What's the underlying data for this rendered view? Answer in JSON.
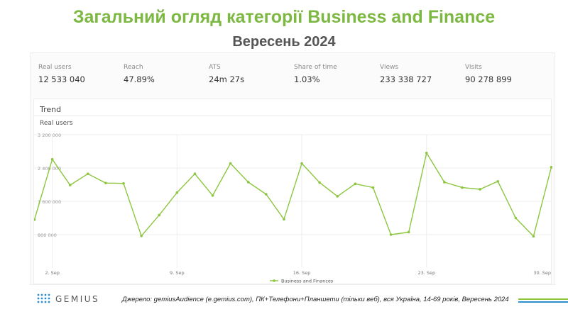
{
  "header": {
    "title": "Загальний огляд категорії Business and Finance",
    "subtitle": "Вересень 2024"
  },
  "metrics": [
    {
      "label": "Real users",
      "value": "12 533 040"
    },
    {
      "label": "Reach",
      "value": "47.89%"
    },
    {
      "label": "ATS",
      "value": "24m 27s"
    },
    {
      "label": "Share of time",
      "value": "1.03%"
    },
    {
      "label": "Views",
      "value": "233 338 727"
    },
    {
      "label": "Visits",
      "value": "90 278 899"
    }
  ],
  "trend": {
    "title": "Trend",
    "series_title": "Real users"
  },
  "chart_data": {
    "type": "line",
    "ylabel": "",
    "xlabel": "",
    "ylim": [
      0,
      3200000
    ],
    "yticks": [
      800000,
      1600000,
      2400000,
      3200000
    ],
    "ytick_labels": [
      "800 000",
      "1 600 000",
      "2 400 000",
      "3 200 000"
    ],
    "x": [
      "1 Sep",
      "2 Sep",
      "3 Sep",
      "4 Sep",
      "5 Sep",
      "6 Sep",
      "7 Sep",
      "8 Sep",
      "9 Sep",
      "10 Sep",
      "11 Sep",
      "12 Sep",
      "13 Sep",
      "14 Sep",
      "15 Sep",
      "16 Sep",
      "17 Sep",
      "18 Sep",
      "19 Sep",
      "20 Sep",
      "21 Sep",
      "22 Sep",
      "23 Sep",
      "24 Sep",
      "25 Sep",
      "26 Sep",
      "27 Sep",
      "28 Sep",
      "29 Sep",
      "30 Sep"
    ],
    "xtick_labels": [
      {
        "index": 1,
        "label": "2. Sep"
      },
      {
        "index": 8,
        "label": "9. Sep"
      },
      {
        "index": 15,
        "label": "16. Sep"
      },
      {
        "index": 22,
        "label": "23. Sep"
      },
      {
        "index": 29,
        "label": "30. Sep"
      }
    ],
    "series": [
      {
        "name": "Business and Finances",
        "color": "#8cc63f",
        "values": [
          1160000,
          2610000,
          1990000,
          2260000,
          2040000,
          2030000,
          770000,
          1270000,
          1810000,
          2260000,
          1740000,
          2510000,
          2060000,
          1770000,
          1170000,
          2510000,
          2050000,
          1720000,
          2020000,
          1930000,
          800000,
          860000,
          2760000,
          2060000,
          1930000,
          1890000,
          2080000,
          1200000,
          760000,
          2420000
        ]
      }
    ],
    "grid": true,
    "legend": "bottom-center"
  },
  "footer": {
    "brand": "GEMIUS",
    "source": "Джерело: gemiusAudience (e.gemius.com), ПК+Телефони+Планшети (тільки веб), вся Україна, 14-69 років, Вересень 2024"
  },
  "colors": {
    "title": "#7db843",
    "line": "#8cc63f",
    "deco_green": "#8cc63f",
    "deco_blue": "#2e8fd0",
    "logo_dots": "#2e8fd0"
  }
}
